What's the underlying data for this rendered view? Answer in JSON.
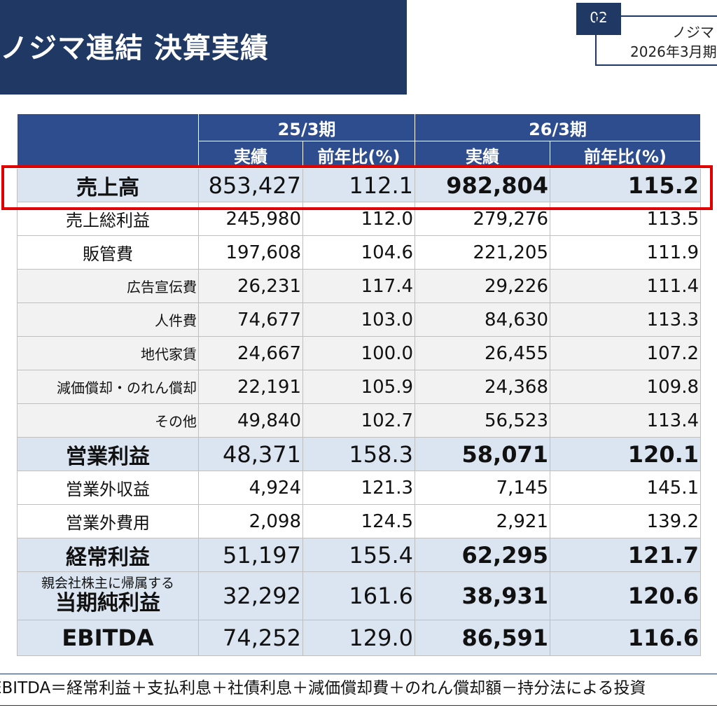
{
  "header": {
    "title": "ノジマ連結 決算実績",
    "page_number": "02",
    "corner_line1": "ノジマ",
    "corner_line2": "2026年3月期"
  },
  "table": {
    "periods": [
      "25/3期",
      "26/3期"
    ],
    "subheaders": [
      "実績",
      "前年比(%)",
      "実績",
      "前年比(%)"
    ],
    "rows": [
      {
        "label": "売上高",
        "v1": "853,427",
        "r1": "112.1",
        "v2": "982,804",
        "r2": "115.2"
      },
      {
        "label": "売上総利益",
        "v1": "245,980",
        "r1": "112.0",
        "v2": "279,276",
        "r2": "113.5"
      },
      {
        "label": "販管費",
        "v1": "197,608",
        "r1": "104.6",
        "v2": "221,205",
        "r2": "111.9"
      },
      {
        "label": "広告宣伝費",
        "v1": "26,231",
        "r1": "117.4",
        "v2": "29,226",
        "r2": "111.4"
      },
      {
        "label": "人件費",
        "v1": "74,677",
        "r1": "103.0",
        "v2": "84,630",
        "r2": "113.3"
      },
      {
        "label": "地代家賃",
        "v1": "24,667",
        "r1": "100.0",
        "v2": "26,455",
        "r2": "107.2"
      },
      {
        "label": "減価償却・のれん償却",
        "v1": "22,191",
        "r1": "105.9",
        "v2": "24,368",
        "r2": "109.8"
      },
      {
        "label": "その他",
        "v1": "49,840",
        "r1": "102.7",
        "v2": "56,523",
        "r2": "113.4"
      },
      {
        "label": "営業利益",
        "v1": "48,371",
        "r1": "158.3",
        "v2": "58,071",
        "r2": "120.1"
      },
      {
        "label": "営業外収益",
        "v1": "4,924",
        "r1": "121.3",
        "v2": "7,145",
        "r2": "145.1"
      },
      {
        "label": "営業外費用",
        "v1": "2,098",
        "r1": "124.5",
        "v2": "2,921",
        "r2": "139.2"
      },
      {
        "label": "経常利益",
        "v1": "51,197",
        "r1": "155.4",
        "v2": "62,295",
        "r2": "121.7"
      },
      {
        "label_small": "親会社株主に帰属する",
        "label": "当期純利益",
        "v1": "32,292",
        "r1": "161.6",
        "v2": "38,931",
        "r2": "120.6"
      },
      {
        "label": "EBITDA",
        "v1": "74,252",
        "r1": "129.0",
        "v2": "86,591",
        "r2": "116.6"
      }
    ]
  },
  "footnote": "EBITDA＝経常利益＋支払利息＋社債利息＋減価償却費＋のれん償却額－持分法による投資",
  "colors": {
    "navy": "#1f3864",
    "header_blue": "#2e4d8f",
    "highlight_red": "#e00000",
    "key_row": "#dbe5f1"
  }
}
